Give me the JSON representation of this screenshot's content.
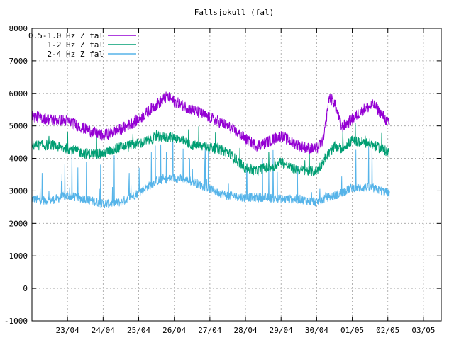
{
  "chart_data": {
    "type": "line",
    "title": "Fallsjokull (fal)",
    "xlabel": "",
    "ylabel": "",
    "ylim": [
      -1000,
      8000
    ],
    "yticks": [
      -1000,
      0,
      1000,
      2000,
      3000,
      4000,
      5000,
      6000,
      7000,
      8000
    ],
    "xlim": [
      0,
      11.5
    ],
    "xticks": [
      {
        "label": "23/04",
        "x": 1
      },
      {
        "label": "24/04",
        "x": 2
      },
      {
        "label": "25/04",
        "x": 3
      },
      {
        "label": "26/04",
        "x": 4
      },
      {
        "label": "27/04",
        "x": 5
      },
      {
        "label": "28/04",
        "x": 6
      },
      {
        "label": "29/04",
        "x": 7
      },
      {
        "label": "30/04",
        "x": 8
      },
      {
        "label": "01/05",
        "x": 9
      },
      {
        "label": "02/05",
        "x": 10
      },
      {
        "label": "03/05",
        "x": 11
      }
    ],
    "grid": true,
    "legend_position": "top-left",
    "series": [
      {
        "name": "0.5-1.0 Hz Z fal",
        "color": "#9400d3",
        "noise": 180,
        "x": [
          0,
          0.5,
          1.0,
          1.5,
          2.0,
          2.5,
          3.0,
          3.5,
          3.8,
          4.0,
          4.5,
          5.0,
          5.5,
          6.0,
          6.3,
          6.5,
          6.8,
          7.0,
          7.3,
          7.5,
          7.8,
          8.0,
          8.2,
          8.35,
          8.5,
          8.7,
          9.0,
          9.3,
          9.6,
          9.8,
          10.0,
          10.05
        ],
        "values": [
          5300,
          5200,
          5150,
          4900,
          4700,
          4900,
          5200,
          5650,
          5900,
          5750,
          5500,
          5250,
          5000,
          4600,
          4400,
          4450,
          4600,
          4700,
          4500,
          4400,
          4300,
          4300,
          4600,
          5900,
          5700,
          4950,
          5200,
          5500,
          5650,
          5400,
          5100,
          5000
        ]
      },
      {
        "name": "1-2 Hz Z fal",
        "color": "#009e73",
        "noise": 160,
        "x": [
          0,
          0.5,
          1.0,
          1.5,
          2.0,
          2.5,
          3.0,
          3.5,
          4.0,
          4.5,
          5.0,
          5.5,
          6.0,
          6.3,
          6.5,
          6.8,
          7.0,
          7.3,
          7.5,
          7.8,
          8.0,
          8.3,
          8.5,
          8.7,
          9.0,
          9.5,
          10.0,
          10.05
        ],
        "values": [
          4400,
          4400,
          4300,
          4150,
          4150,
          4350,
          4450,
          4650,
          4650,
          4400,
          4350,
          4200,
          3700,
          3600,
          3700,
          3750,
          3900,
          3700,
          3650,
          3600,
          3600,
          4100,
          4350,
          4300,
          4550,
          4450,
          4200,
          4150
        ]
      },
      {
        "name": "2-4 Hz Z fal",
        "color": "#56b4e9",
        "noise": 140,
        "x": [
          0,
          0.5,
          1.0,
          1.5,
          2.0,
          2.5,
          3.0,
          3.5,
          4.0,
          4.5,
          5.0,
          5.5,
          6.0,
          6.5,
          7.0,
          7.5,
          8.0,
          8.3,
          8.5,
          8.7,
          9.0,
          9.5,
          10.0,
          10.05
        ],
        "values": [
          2750,
          2700,
          2850,
          2750,
          2600,
          2650,
          2950,
          3300,
          3400,
          3300,
          3050,
          2850,
          2800,
          2800,
          2750,
          2750,
          2650,
          2800,
          2850,
          2950,
          3100,
          3100,
          2950,
          2850
        ]
      }
    ]
  }
}
